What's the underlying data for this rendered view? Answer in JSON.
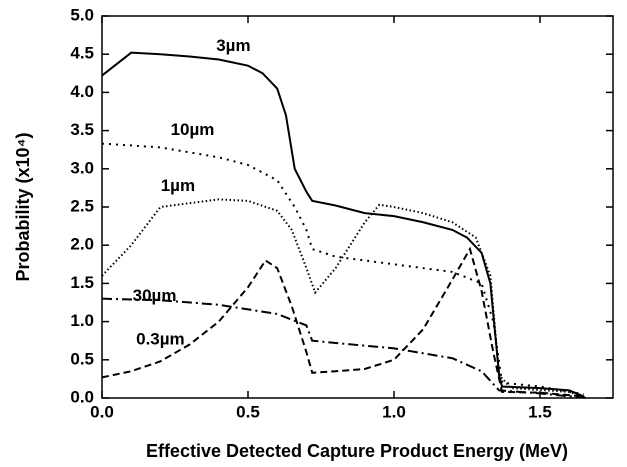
{
  "chart_data": {
    "type": "line",
    "xlabel": "Effective Detected Capture Product Energy (MeV)",
    "ylabel": "Probability (x10⁴)",
    "xlim": [
      0,
      1.75
    ],
    "ylim": [
      0,
      5
    ],
    "xticks": [
      {
        "value": 0,
        "label": "0.0"
      },
      0.5,
      {
        "value": 1,
        "label": "1.0"
      },
      1.5
    ],
    "yticks": [
      {
        "value": 0,
        "label": "0.0"
      },
      0.5,
      {
        "value": 1,
        "label": "1.0"
      },
      1.5,
      {
        "value": 2,
        "label": "2.0"
      },
      2.5,
      {
        "value": 3,
        "label": "3.0"
      },
      3.5,
      {
        "value": 4,
        "label": "4.0"
      },
      4.5,
      {
        "value": 5,
        "label": "5.0"
      }
    ],
    "series": [
      {
        "name": "3µm",
        "color": "#000000",
        "dash": "solid",
        "x": [
          0,
          0.1,
          0.2,
          0.3,
          0.4,
          0.5,
          0.55,
          0.6,
          0.63,
          0.66,
          0.7,
          0.72,
          0.8,
          0.9,
          1.0,
          1.1,
          1.2,
          1.25,
          1.3,
          1.33,
          1.36,
          1.37,
          1.5,
          1.6,
          1.65
        ],
        "values": [
          4.22,
          4.52,
          4.5,
          4.47,
          4.43,
          4.35,
          4.25,
          4.05,
          3.7,
          3.0,
          2.7,
          2.58,
          2.52,
          2.42,
          2.38,
          2.3,
          2.2,
          2.1,
          1.9,
          1.5,
          0.3,
          0.15,
          0.13,
          0.1,
          0.02
        ]
      },
      {
        "name": "10µm",
        "color": "#000000",
        "dash": "sparse-dot",
        "x": [
          0,
          0.2,
          0.4,
          0.5,
          0.6,
          0.66,
          0.7,
          0.72,
          0.8,
          1.0,
          1.2,
          1.3,
          1.34,
          1.37,
          1.5,
          1.65
        ],
        "values": [
          3.33,
          3.28,
          3.15,
          3.05,
          2.85,
          2.5,
          2.2,
          1.95,
          1.85,
          1.75,
          1.65,
          1.5,
          1.0,
          0.2,
          0.15,
          0.05
        ]
      },
      {
        "name": "1µm",
        "color": "#000000",
        "dash": "dot",
        "x": [
          0,
          0.1,
          0.2,
          0.3,
          0.4,
          0.5,
          0.6,
          0.65,
          0.7,
          0.73,
          0.8,
          0.9,
          0.95,
          1.0,
          1.1,
          1.2,
          1.28,
          1.33,
          1.36,
          1.4,
          1.6,
          1.66
        ],
        "values": [
          1.6,
          2.0,
          2.5,
          2.55,
          2.6,
          2.58,
          2.45,
          2.2,
          1.7,
          1.38,
          1.7,
          2.3,
          2.53,
          2.5,
          2.42,
          2.3,
          2.1,
          1.6,
          0.3,
          0.13,
          0.08,
          0.0
        ]
      },
      {
        "name": "30µm",
        "color": "#000000",
        "dash": "dash-dot",
        "x": [
          0,
          0.2,
          0.4,
          0.6,
          0.7,
          0.72,
          0.8,
          1.0,
          1.2,
          1.3,
          1.36,
          1.5,
          1.66
        ],
        "values": [
          1.3,
          1.28,
          1.22,
          1.1,
          0.95,
          0.75,
          0.72,
          0.65,
          0.52,
          0.35,
          0.1,
          0.06,
          0.0
        ]
      },
      {
        "name": "0.3µm",
        "color": "#000000",
        "dash": "dash",
        "x": [
          0,
          0.1,
          0.2,
          0.3,
          0.4,
          0.5,
          0.56,
          0.6,
          0.65,
          0.7,
          0.72,
          0.8,
          0.9,
          1.0,
          1.1,
          1.2,
          1.26,
          1.3,
          1.34,
          1.37,
          1.5,
          1.65
        ],
        "values": [
          0.27,
          0.35,
          0.48,
          0.7,
          1.0,
          1.45,
          1.8,
          1.7,
          1.2,
          0.6,
          0.33,
          0.35,
          0.38,
          0.5,
          0.9,
          1.55,
          1.95,
          1.4,
          0.6,
          0.08,
          0.07,
          0.02
        ]
      }
    ],
    "annotations": [
      {
        "text": "3µm",
        "x": 0.45,
        "y": 4.6
      },
      {
        "text": "10µm",
        "x": 0.31,
        "y": 3.5
      },
      {
        "text": "1µm",
        "x": 0.26,
        "y": 2.77
      },
      {
        "text": "30µm",
        "x": 0.18,
        "y": 1.33
      },
      {
        "text": "0.3µm",
        "x": 0.2,
        "y": 0.76
      }
    ]
  }
}
